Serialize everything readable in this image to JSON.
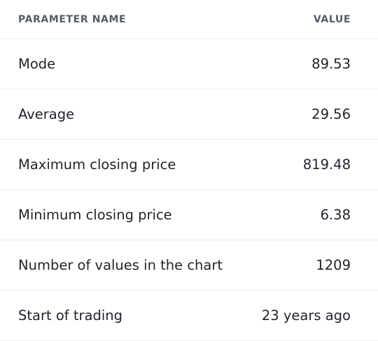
{
  "table": {
    "headers": {
      "name": "PARAMETER NAME",
      "value": "VALUE"
    },
    "rows": [
      {
        "name": "Mode",
        "value": "89.53"
      },
      {
        "name": "Average",
        "value": "29.56"
      },
      {
        "name": "Maximum closing price",
        "value": "819.48"
      },
      {
        "name": "Minimum closing price",
        "value": "6.38"
      },
      {
        "name": "Number of values in the chart",
        "value": "1209"
      },
      {
        "name": "Start of trading",
        "value": "23 years ago"
      }
    ]
  }
}
